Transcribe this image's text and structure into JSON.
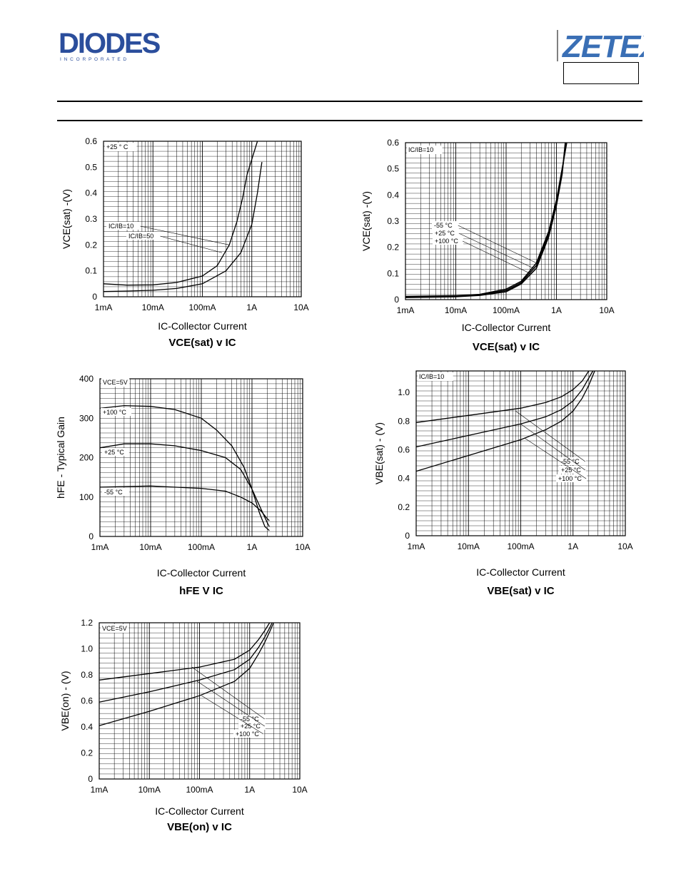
{
  "header": {
    "diodes_logo_text": "DIODES",
    "diodes_logo_sub": "I N C O R P O R A T E D",
    "zetex_logo_text": "ZETEX",
    "zetex_box_text": ""
  },
  "chart_data": [
    {
      "type": "line",
      "title": "VCE(sat) v IC",
      "title_parts": [
        [
          "V",
          false
        ],
        [
          "CE(sat)",
          false
        ],
        [
          " v I",
          false
        ],
        [
          "C",
          false
        ]
      ],
      "xlabel": "IC-Collector Current",
      "ylabel": "VCE(sat) -(V)",
      "x_scale": "log",
      "xlim": [
        0.001,
        10
      ],
      "ylim": [
        0,
        0.6
      ],
      "x_ticks": [
        [
          "1mA",
          0.001
        ],
        [
          "10mA",
          0.01
        ],
        [
          "100mA",
          0.1
        ],
        [
          "1A",
          1
        ],
        [
          "10A",
          10
        ]
      ],
      "y_ticks": [
        [
          "0",
          0
        ],
        [
          "0.1",
          0.1
        ],
        [
          "0.2",
          0.2
        ],
        [
          "0.3",
          0.3
        ],
        [
          "0.4",
          0.4
        ],
        [
          "0.5",
          0.5
        ],
        [
          "0.6",
          0.6
        ]
      ],
      "annotations": [
        "+25 ° C"
      ],
      "legend_labels": [
        "IC/IB=10",
        "IC/IB=50"
      ],
      "series": [
        {
          "name": "IC/IB=10",
          "x": [
            0.001,
            0.003,
            0.01,
            0.03,
            0.1,
            0.2,
            0.35,
            0.5,
            0.65,
            0.8,
            1.3
          ],
          "y": [
            0.05,
            0.045,
            0.046,
            0.055,
            0.08,
            0.12,
            0.2,
            0.29,
            0.38,
            0.47,
            0.6
          ]
        },
        {
          "name": "IC/IB=50",
          "x": [
            0.001,
            0.003,
            0.01,
            0.03,
            0.1,
            0.3,
            0.6,
            1.0,
            1.3,
            1.6
          ],
          "y": [
            0.02,
            0.022,
            0.025,
            0.032,
            0.05,
            0.1,
            0.17,
            0.28,
            0.4,
            0.52
          ]
        }
      ]
    },
    {
      "type": "line",
      "title": "VCE(sat) v IC",
      "xlabel": "IC-Collector Current",
      "ylabel": "VCE(sat) -(V)",
      "x_scale": "log",
      "xlim": [
        0.001,
        10
      ],
      "ylim": [
        0,
        0.6
      ],
      "x_ticks": [
        [
          "1mA",
          0.001
        ],
        [
          "10mA",
          0.01
        ],
        [
          "100mA",
          0.1
        ],
        [
          "1A",
          1
        ],
        [
          "10A",
          10
        ]
      ],
      "y_ticks": [
        [
          "0",
          0
        ],
        [
          "0.1",
          0.1
        ],
        [
          "0.2",
          0.2
        ],
        [
          "0.3",
          0.3
        ],
        [
          "0.4",
          0.4
        ],
        [
          "0.5",
          0.5
        ],
        [
          "0.6",
          0.6
        ]
      ],
      "annotations": [
        "IC/IB=10"
      ],
      "legend_labels": [
        "-55 °C",
        "+25 °C",
        "+100 °C"
      ],
      "series": [
        {
          "name": "-55 °C",
          "x": [
            0.001,
            0.01,
            0.03,
            0.1,
            0.2,
            0.4,
            0.7,
            1.0,
            1.3,
            1.6
          ],
          "y": [
            0.012,
            0.015,
            0.02,
            0.04,
            0.07,
            0.14,
            0.26,
            0.38,
            0.5,
            0.6
          ]
        },
        {
          "name": "+25 °C",
          "x": [
            0.001,
            0.01,
            0.03,
            0.1,
            0.2,
            0.4,
            0.7,
            1.0,
            1.3,
            1.55
          ],
          "y": [
            0.01,
            0.013,
            0.018,
            0.035,
            0.065,
            0.13,
            0.25,
            0.37,
            0.49,
            0.6
          ]
        },
        {
          "name": "+100 °C",
          "x": [
            0.001,
            0.01,
            0.03,
            0.1,
            0.2,
            0.4,
            0.7,
            1.0,
            1.3,
            1.5
          ],
          "y": [
            0.008,
            0.011,
            0.016,
            0.03,
            0.06,
            0.12,
            0.24,
            0.36,
            0.48,
            0.6
          ]
        }
      ]
    },
    {
      "type": "line",
      "title": "hFE V IC",
      "xlabel": "IC-Collector Current",
      "ylabel": "hFE - Typical Gain",
      "x_scale": "log",
      "xlim": [
        0.001,
        10
      ],
      "ylim": [
        0,
        400
      ],
      "x_ticks": [
        [
          "1mA",
          0.001
        ],
        [
          "10mA",
          0.01
        ],
        [
          "100mA",
          0.1
        ],
        [
          "1A",
          1
        ],
        [
          "10A",
          10
        ]
      ],
      "y_ticks": [
        [
          "0",
          0
        ],
        [
          "100",
          100
        ],
        [
          "200",
          200
        ],
        [
          "300",
          300
        ],
        [
          "400",
          400
        ]
      ],
      "annotations": [
        "VCE=5V"
      ],
      "legend_labels": [
        "+100 °C",
        "+25 °C",
        "-55 °C"
      ],
      "series": [
        {
          "name": "+100 °C",
          "x": [
            0.001,
            0.003,
            0.01,
            0.03,
            0.1,
            0.2,
            0.4,
            0.7,
            1.0,
            1.4,
            1.8,
            2.2
          ],
          "y": [
            325,
            332,
            330,
            322,
            300,
            270,
            230,
            175,
            120,
            60,
            25,
            15
          ]
        },
        {
          "name": "+25 °C",
          "x": [
            0.001,
            0.003,
            0.01,
            0.03,
            0.1,
            0.3,
            0.6,
            1.0,
            1.5,
            2.0,
            2.2
          ],
          "y": [
            225,
            235,
            235,
            230,
            218,
            200,
            170,
            120,
            70,
            35,
            25
          ]
        },
        {
          "name": "-55 °C",
          "x": [
            0.001,
            0.01,
            0.1,
            0.3,
            0.6,
            1.0,
            1.5,
            2.0,
            2.2
          ],
          "y": [
            125,
            128,
            122,
            115,
            100,
            85,
            65,
            45,
            40
          ]
        }
      ]
    },
    {
      "type": "line",
      "title": "VBE(sat) v IC",
      "xlabel": "IC-Collector Current",
      "ylabel": "VBE(sat) - (V)",
      "x_scale": "log",
      "xlim": [
        0.001,
        10
      ],
      "ylim": [
        0,
        1.15
      ],
      "x_ticks": [
        [
          "1mA",
          0.001
        ],
        [
          "10mA",
          0.01
        ],
        [
          "100mA",
          0.1
        ],
        [
          "1A",
          1
        ],
        [
          "10A",
          10
        ]
      ],
      "y_ticks": [
        [
          "0",
          0
        ],
        [
          "0.2",
          0.2
        ],
        [
          "0.4",
          0.4
        ],
        [
          "0.6",
          0.6
        ],
        [
          "0.8",
          0.8
        ],
        [
          "1.0",
          1.0
        ]
      ],
      "annotations": [
        "IC/IB=10"
      ],
      "legend_labels": [
        "-55 °C",
        "+25 °C",
        "+100 °C"
      ],
      "series": [
        {
          "name": "-55 °C",
          "x": [
            0.001,
            0.01,
            0.1,
            0.3,
            0.6,
            1.0,
            1.5,
            2.0
          ],
          "y": [
            0.79,
            0.84,
            0.89,
            0.93,
            0.97,
            1.02,
            1.08,
            1.15
          ]
        },
        {
          "name": "+25 °C",
          "x": [
            0.001,
            0.01,
            0.1,
            0.3,
            0.6,
            1.0,
            1.5,
            2.0,
            2.4
          ],
          "y": [
            0.62,
            0.7,
            0.78,
            0.83,
            0.88,
            0.94,
            1.02,
            1.1,
            1.15
          ]
        },
        {
          "name": "+100 °C",
          "x": [
            0.001,
            0.01,
            0.1,
            0.3,
            0.6,
            1.0,
            1.5,
            2.0,
            2.6
          ],
          "y": [
            0.45,
            0.56,
            0.67,
            0.74,
            0.8,
            0.87,
            0.96,
            1.05,
            1.15
          ]
        }
      ]
    },
    {
      "type": "line",
      "title": "VBE(on) v IC",
      "xlabel": "IC-Collector Current",
      "ylabel": "VBE(on) - (V)",
      "x_scale": "log",
      "xlim": [
        0.001,
        10
      ],
      "ylim": [
        0,
        1.2
      ],
      "x_ticks": [
        [
          "1mA",
          0.001
        ],
        [
          "10mA",
          0.01
        ],
        [
          "100mA",
          0.1
        ],
        [
          "1A",
          1
        ],
        [
          "10A",
          10
        ]
      ],
      "y_ticks": [
        [
          "0",
          0
        ],
        [
          "0.2",
          0.2
        ],
        [
          "0.4",
          0.4
        ],
        [
          "0.6",
          0.6
        ],
        [
          "0.8",
          0.8
        ],
        [
          "1.0",
          1.0
        ],
        [
          "1.2",
          1.2
        ]
      ],
      "annotations": [
        "VCE=5V"
      ],
      "legend_labels": [
        "-55 °C",
        "+25 °C",
        "+100 °C"
      ],
      "series": [
        {
          "name": "-55 °C",
          "x": [
            0.001,
            0.01,
            0.1,
            0.5,
            1.0,
            1.5,
            2.0,
            2.5
          ],
          "y": [
            0.76,
            0.81,
            0.86,
            0.92,
            0.99,
            1.07,
            1.14,
            1.2
          ]
        },
        {
          "name": "+25 °C",
          "x": [
            0.001,
            0.01,
            0.1,
            0.5,
            1.0,
            1.5,
            2.0,
            2.5,
            2.8
          ],
          "y": [
            0.59,
            0.67,
            0.76,
            0.84,
            0.92,
            1.01,
            1.09,
            1.16,
            1.2
          ]
        },
        {
          "name": "+100 °C",
          "x": [
            0.001,
            0.01,
            0.1,
            0.5,
            1.0,
            1.5,
            2.0,
            2.5,
            3.0
          ],
          "y": [
            0.41,
            0.52,
            0.64,
            0.75,
            0.85,
            0.96,
            1.05,
            1.13,
            1.2
          ]
        }
      ]
    }
  ]
}
